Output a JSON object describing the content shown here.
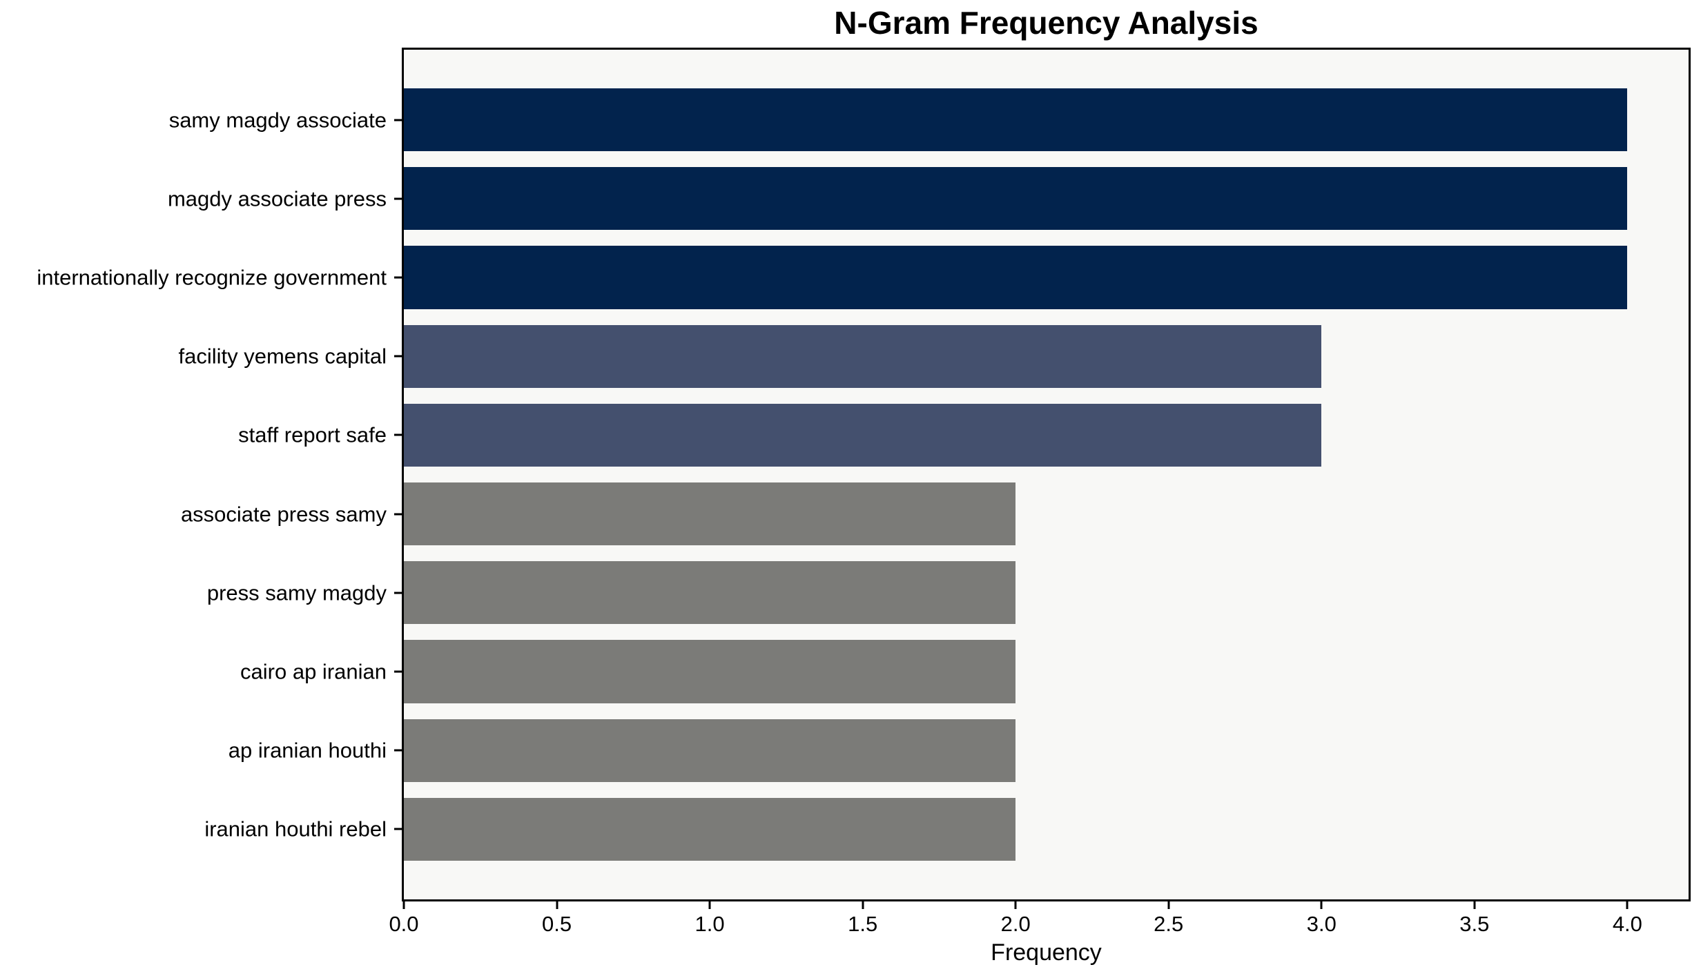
{
  "chart_data": {
    "type": "bar",
    "orientation": "horizontal",
    "title": "N-Gram Frequency Analysis",
    "xlabel": "Frequency",
    "ylabel": "",
    "categories": [
      "samy magdy associate",
      "magdy associate press",
      "internationally recognize government",
      "facility yemens capital",
      "staff report safe",
      "associate press samy",
      "press samy magdy",
      "cairo ap iranian",
      "ap iranian houthi",
      "iranian houthi rebel"
    ],
    "values": [
      4,
      4,
      4,
      3,
      3,
      2,
      2,
      2,
      2,
      2
    ],
    "bar_colors": [
      "#02234D",
      "#02234D",
      "#02234D",
      "#44506E",
      "#44506E",
      "#7B7B78",
      "#7B7B78",
      "#7B7B78",
      "#7B7B78",
      "#7B7B78"
    ],
    "x_tick_values": [
      0,
      0.5,
      1,
      1.5,
      2,
      2.5,
      3,
      3.5,
      4
    ],
    "x_tick_labels": [
      "0.0",
      "0.5",
      "1.0",
      "1.5",
      "2.0",
      "2.5",
      "3.0",
      "3.5",
      "4.0"
    ],
    "xlim": [
      0,
      4.2
    ],
    "grid": false,
    "legend": false,
    "colors": {
      "value_4": "#02234D",
      "value_3": "#44506E",
      "value_2": "#7B7B78",
      "plot_background": "#F8F8F6",
      "figure_background": "#FFFFFF",
      "axis": "#000000",
      "text": "#000000"
    }
  }
}
